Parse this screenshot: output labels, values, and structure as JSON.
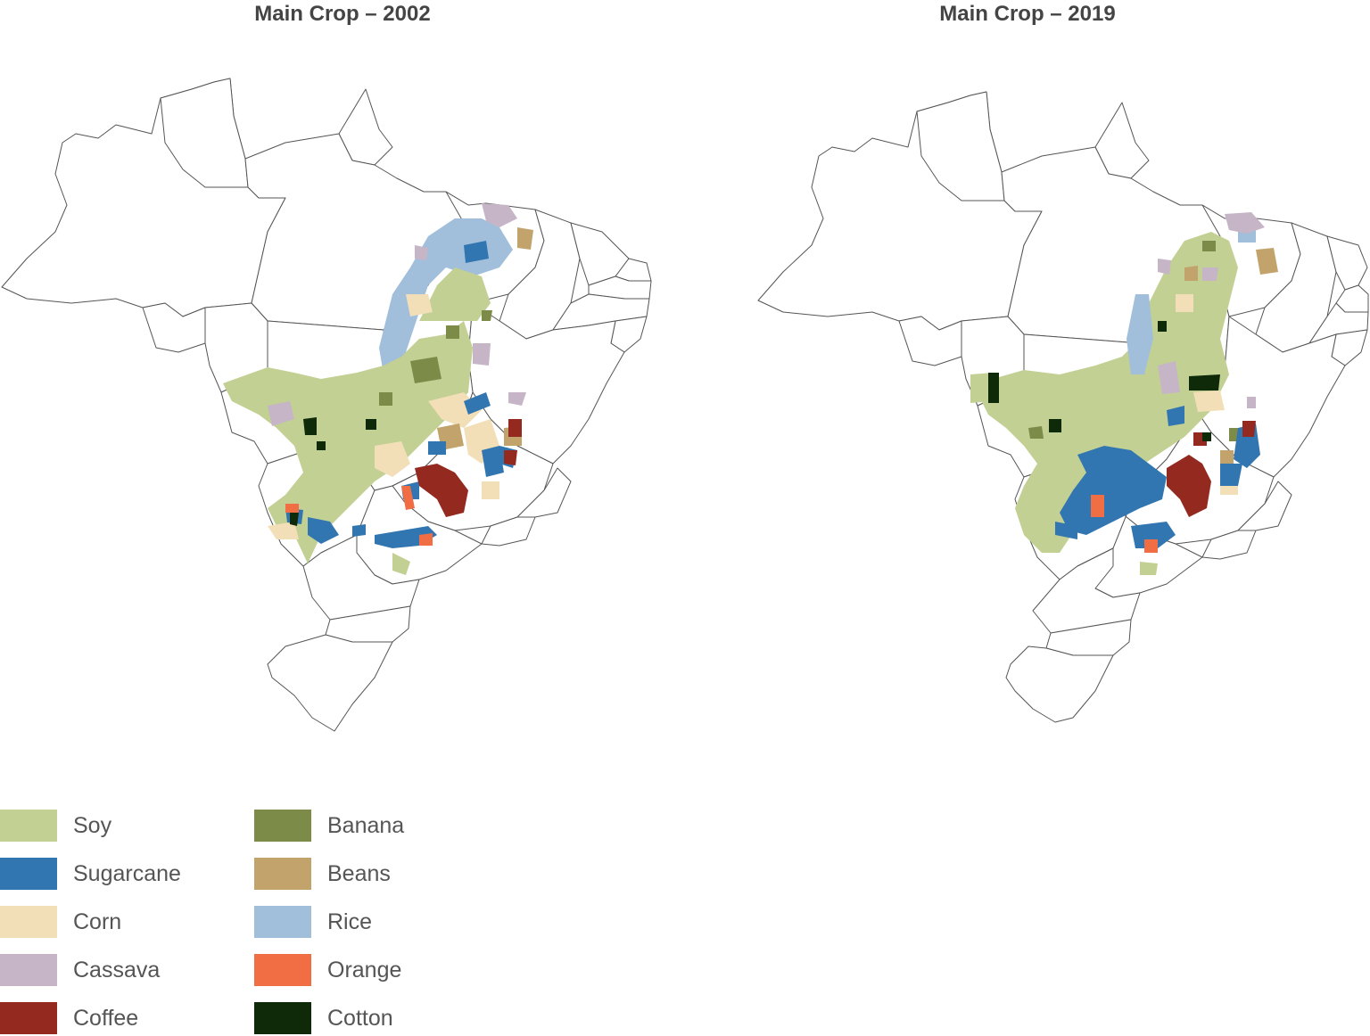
{
  "maps": [
    {
      "title": "Main Crop – 2002"
    },
    {
      "title": "Main Crop – 2019"
    }
  ],
  "legend": [
    {
      "label": "Soy",
      "color": "#c2d094"
    },
    {
      "label": "Sugarcane",
      "color": "#3276b1"
    },
    {
      "label": "Corn",
      "color": "#f2dfb7"
    },
    {
      "label": "Cassava",
      "color": "#c6b5c6"
    },
    {
      "label": "Coffee",
      "color": "#93291f"
    },
    {
      "label": "Banana",
      "color": "#7c8c48"
    },
    {
      "label": "Beans",
      "color": "#c2a36b"
    },
    {
      "label": "Rice",
      "color": "#a1bfdb"
    },
    {
      "label": "Orange",
      "color": "#f16d44"
    },
    {
      "label": "Cotton",
      "color": "#0f2a08"
    }
  ]
}
